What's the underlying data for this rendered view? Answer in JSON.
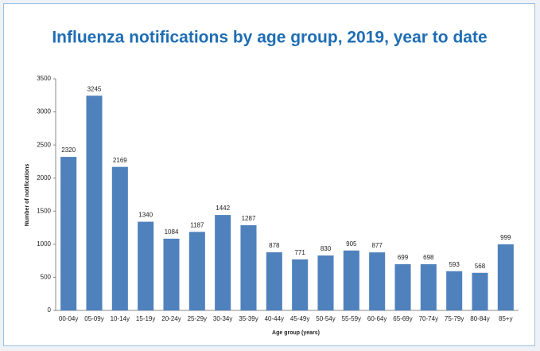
{
  "chart_data": {
    "type": "bar",
    "title": "Influenza notifications by age group, 2019, year to date",
    "x_label": "Age group (years)",
    "y_label": "Number of notifications",
    "categories": [
      "00-04y",
      "05-09y",
      "10-14y",
      "15-19y",
      "20-24y",
      "25-29y",
      "30-34y",
      "35-39y",
      "40-44y",
      "45-49y",
      "50-54y",
      "55-59y",
      "60-64y",
      "65-69y",
      "70-74y",
      "75-79y",
      "80-84y",
      "85+y"
    ],
    "values": [
      2320,
      3245,
      2169,
      1340,
      1084,
      1187,
      1442,
      1287,
      878,
      771,
      830,
      905,
      877,
      699,
      698,
      593,
      568,
      999
    ],
    "color": "#4f81bd",
    "ylim": [
      0,
      3500
    ],
    "yticks": [
      0,
      500,
      1000,
      1500,
      2000,
      2500,
      3000,
      3500
    ],
    "grid": false
  }
}
